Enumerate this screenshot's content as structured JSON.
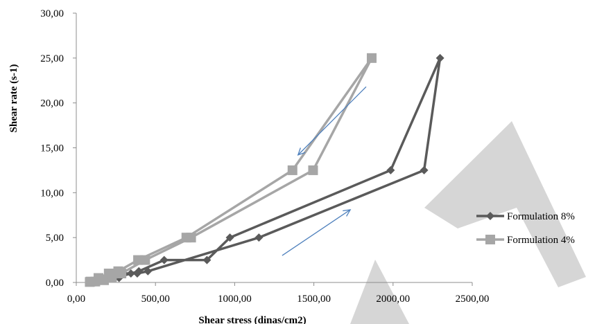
{
  "chart_data": {
    "type": "scatter",
    "xlabel": "Shear stress (dinas/cm2)",
    "ylabel": "Shear rate (s-1)",
    "xlim": [
      0,
      2500
    ],
    "ylim": [
      0,
      30
    ],
    "x_ticks": [
      "0,00",
      "500,00",
      "1000,00",
      "1500,00",
      "2000,00",
      "2500,00"
    ],
    "y_ticks": [
      "0,00",
      "5,00",
      "10,00",
      "15,00",
      "20,00",
      "25,00",
      "30,00"
    ],
    "grid": false,
    "legend_position": "right",
    "series": [
      {
        "name": "Formulation 8%",
        "color": "#5a5a5a",
        "marker": "diamond",
        "x": [
          95,
          140,
          190,
          270,
          290,
          345,
          385,
          452,
          1153,
          2196,
          2297,
          1985,
          970,
          825,
          555,
          395,
          245,
          185,
          110
        ],
        "y": [
          0.05,
          0.1,
          0.25,
          0.5,
          1.0,
          1.0,
          1.0,
          1.25,
          5.0,
          12.5,
          25.0,
          12.5,
          5.0,
          2.5,
          2.5,
          1.25,
          0.5,
          0.25,
          0.1
        ]
      },
      {
        "name": "Formulation 4%",
        "color": "#a6a6a6",
        "marker": "square",
        "x": [
          85,
          120,
          175,
          225,
          285,
          435,
          725,
          1495,
          1865,
          1365,
          695,
          390,
          265,
          205,
          140,
          90
        ],
        "y": [
          0.05,
          0.1,
          0.25,
          0.5,
          1.0,
          2.5,
          5.0,
          12.5,
          25.0,
          12.5,
          5.0,
          2.5,
          1.25,
          1.0,
          0.5,
          0.1
        ]
      }
    ],
    "annotations": [
      {
        "type": "arrow",
        "color": "#4f81bd",
        "from": [
          1830,
          21.8
        ],
        "to": [
          1400,
          14.2
        ]
      },
      {
        "type": "arrow",
        "color": "#4f81bd",
        "from": [
          1300,
          3.0
        ],
        "to": [
          1730,
          8.1
        ]
      }
    ],
    "watermark_color": "#d6d6d6"
  }
}
